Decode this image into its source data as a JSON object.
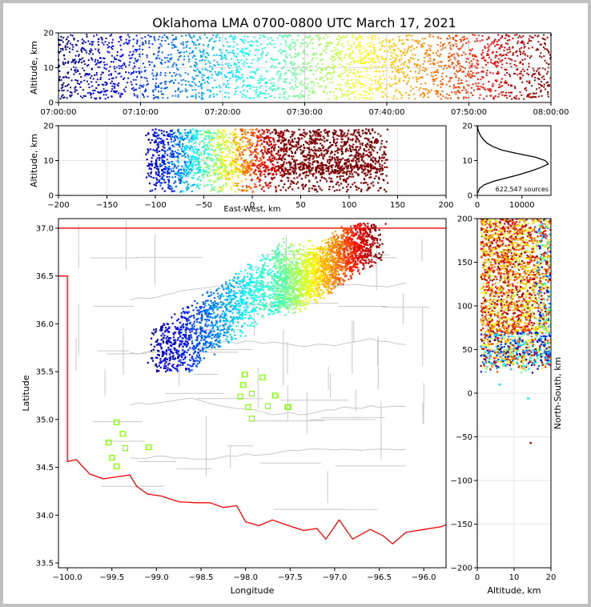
{
  "title": "Oklahoma LMA 0700-0800 UTC March 17, 2021",
  "colors": {
    "frame_border": "#c0c0c0",
    "state_border": "#ff0000",
    "county_lines": "#c8c8c8",
    "station_marker": "#7fff00",
    "colormap": [
      "#00007f",
      "#0000ff",
      "#007fff",
      "#00ffff",
      "#7fff7f",
      "#ffff00",
      "#ff7f00",
      "#ff0000",
      "#7f0000"
    ]
  },
  "chart_data": [
    {
      "panel": "altitude-vs-time",
      "type": "scatter",
      "ylabel": "Altitude, km",
      "xlim": [
        "07:00:00",
        "08:00:00"
      ],
      "ylim": [
        0,
        20
      ],
      "x_ticks": [
        "07:00:00",
        "07:10:00",
        "07:20:00",
        "07:30:00",
        "07:40:00",
        "07:50:00",
        "08:00:00"
      ],
      "y_ticks": [
        "0",
        "10",
        "20"
      ],
      "color_by": "time"
    },
    {
      "panel": "altitude-vs-east-west",
      "type": "scatter",
      "xlabel": "East-West, km",
      "ylabel": "Altitude, km",
      "xlim": [
        -200,
        200
      ],
      "ylim": [
        0,
        20
      ],
      "x_ticks": [
        "−200",
        "−150",
        "−100",
        "−50",
        "0",
        "50",
        "100",
        "150",
        "200"
      ],
      "y_ticks": [
        "0",
        "10",
        "20"
      ]
    },
    {
      "panel": "altitude-histogram",
      "type": "line",
      "annotation": "622,547 sources",
      "xlim": [
        0,
        16500
      ],
      "ylim": [
        0,
        20
      ],
      "x_ticks": [
        "0",
        "10000"
      ],
      "y_ticks": [
        "0",
        "10",
        "20"
      ],
      "profile": [
        [
          0,
          0.5
        ],
        [
          200,
          1
        ],
        [
          500,
          2
        ],
        [
          1500,
          3
        ],
        [
          3500,
          4
        ],
        [
          6500,
          5
        ],
        [
          9500,
          6
        ],
        [
          12000,
          7
        ],
        [
          14200,
          8
        ],
        [
          15900,
          9
        ],
        [
          15200,
          10
        ],
        [
          13000,
          11
        ],
        [
          9000,
          12
        ],
        [
          5500,
          13
        ],
        [
          3500,
          14
        ],
        [
          2200,
          15
        ],
        [
          1400,
          16
        ],
        [
          800,
          17
        ],
        [
          400,
          18
        ],
        [
          150,
          19
        ],
        [
          60,
          20
        ]
      ]
    },
    {
      "panel": "plan-view-map",
      "type": "scatter",
      "xlabel": "Longitude",
      "ylabel": "Latitude",
      "xlim": [
        -100.1,
        -95.75
      ],
      "ylim": [
        33.45,
        37.1
      ],
      "x_ticks": [
        "−100.0",
        "−99.5",
        "−99.0",
        "−98.5",
        "−98.0",
        "−97.5",
        "−97.0",
        "−96.5",
        "−96.0"
      ],
      "y_ticks": [
        "33.5",
        "34.0",
        "34.5",
        "35.0",
        "35.5",
        "36.0",
        "36.5",
        "37.0"
      ],
      "stations": [
        [
          -99.45,
          34.97
        ],
        [
          -99.38,
          34.85
        ],
        [
          -99.54,
          34.76
        ],
        [
          -99.35,
          34.7
        ],
        [
          -99.5,
          34.6
        ],
        [
          -99.45,
          34.51
        ],
        [
          -99.09,
          34.71
        ],
        [
          -98.01,
          35.47
        ],
        [
          -98.03,
          35.36
        ],
        [
          -97.81,
          35.44
        ],
        [
          -97.93,
          35.27
        ],
        [
          -98.06,
          35.24
        ],
        [
          -97.67,
          35.25
        ],
        [
          -97.97,
          35.13
        ],
        [
          -97.75,
          35.14
        ],
        [
          -97.53,
          35.13
        ],
        [
          -97.52,
          35.13
        ],
        [
          -97.93,
          35.01
        ]
      ]
    },
    {
      "panel": "north-south-vs-altitude",
      "type": "scatter",
      "xlabel": "Altitude, km",
      "ylabel": "North-South, km",
      "xlim": [
        0,
        20
      ],
      "ylim": [
        -200,
        200
      ],
      "x_ticks": [
        "0",
        "10",
        "20"
      ],
      "y_ticks": [
        "−200",
        "−150",
        "−100",
        "−50",
        "0",
        "50",
        "100",
        "150",
        "200"
      ]
    }
  ]
}
